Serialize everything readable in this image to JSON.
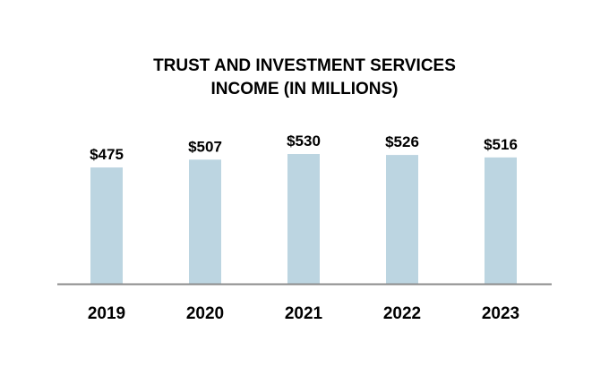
{
  "chart_data": {
    "type": "bar",
    "title_lines": [
      "TRUST AND INVESTMENT SERVICES",
      "INCOME (IN MILLIONS)"
    ],
    "categories": [
      "2019",
      "2020",
      "2021",
      "2022",
      "2023"
    ],
    "values": [
      475,
      507,
      530,
      526,
      516
    ],
    "value_labels": [
      "$475",
      "$507",
      "$530",
      "$526",
      "$516"
    ],
    "xlabel": "",
    "ylabel": "",
    "ylim": [
      0,
      530
    ],
    "grid": false,
    "legend": "none",
    "bar_color": "#bcd5e1",
    "axis_color": "#8c8c8c"
  }
}
